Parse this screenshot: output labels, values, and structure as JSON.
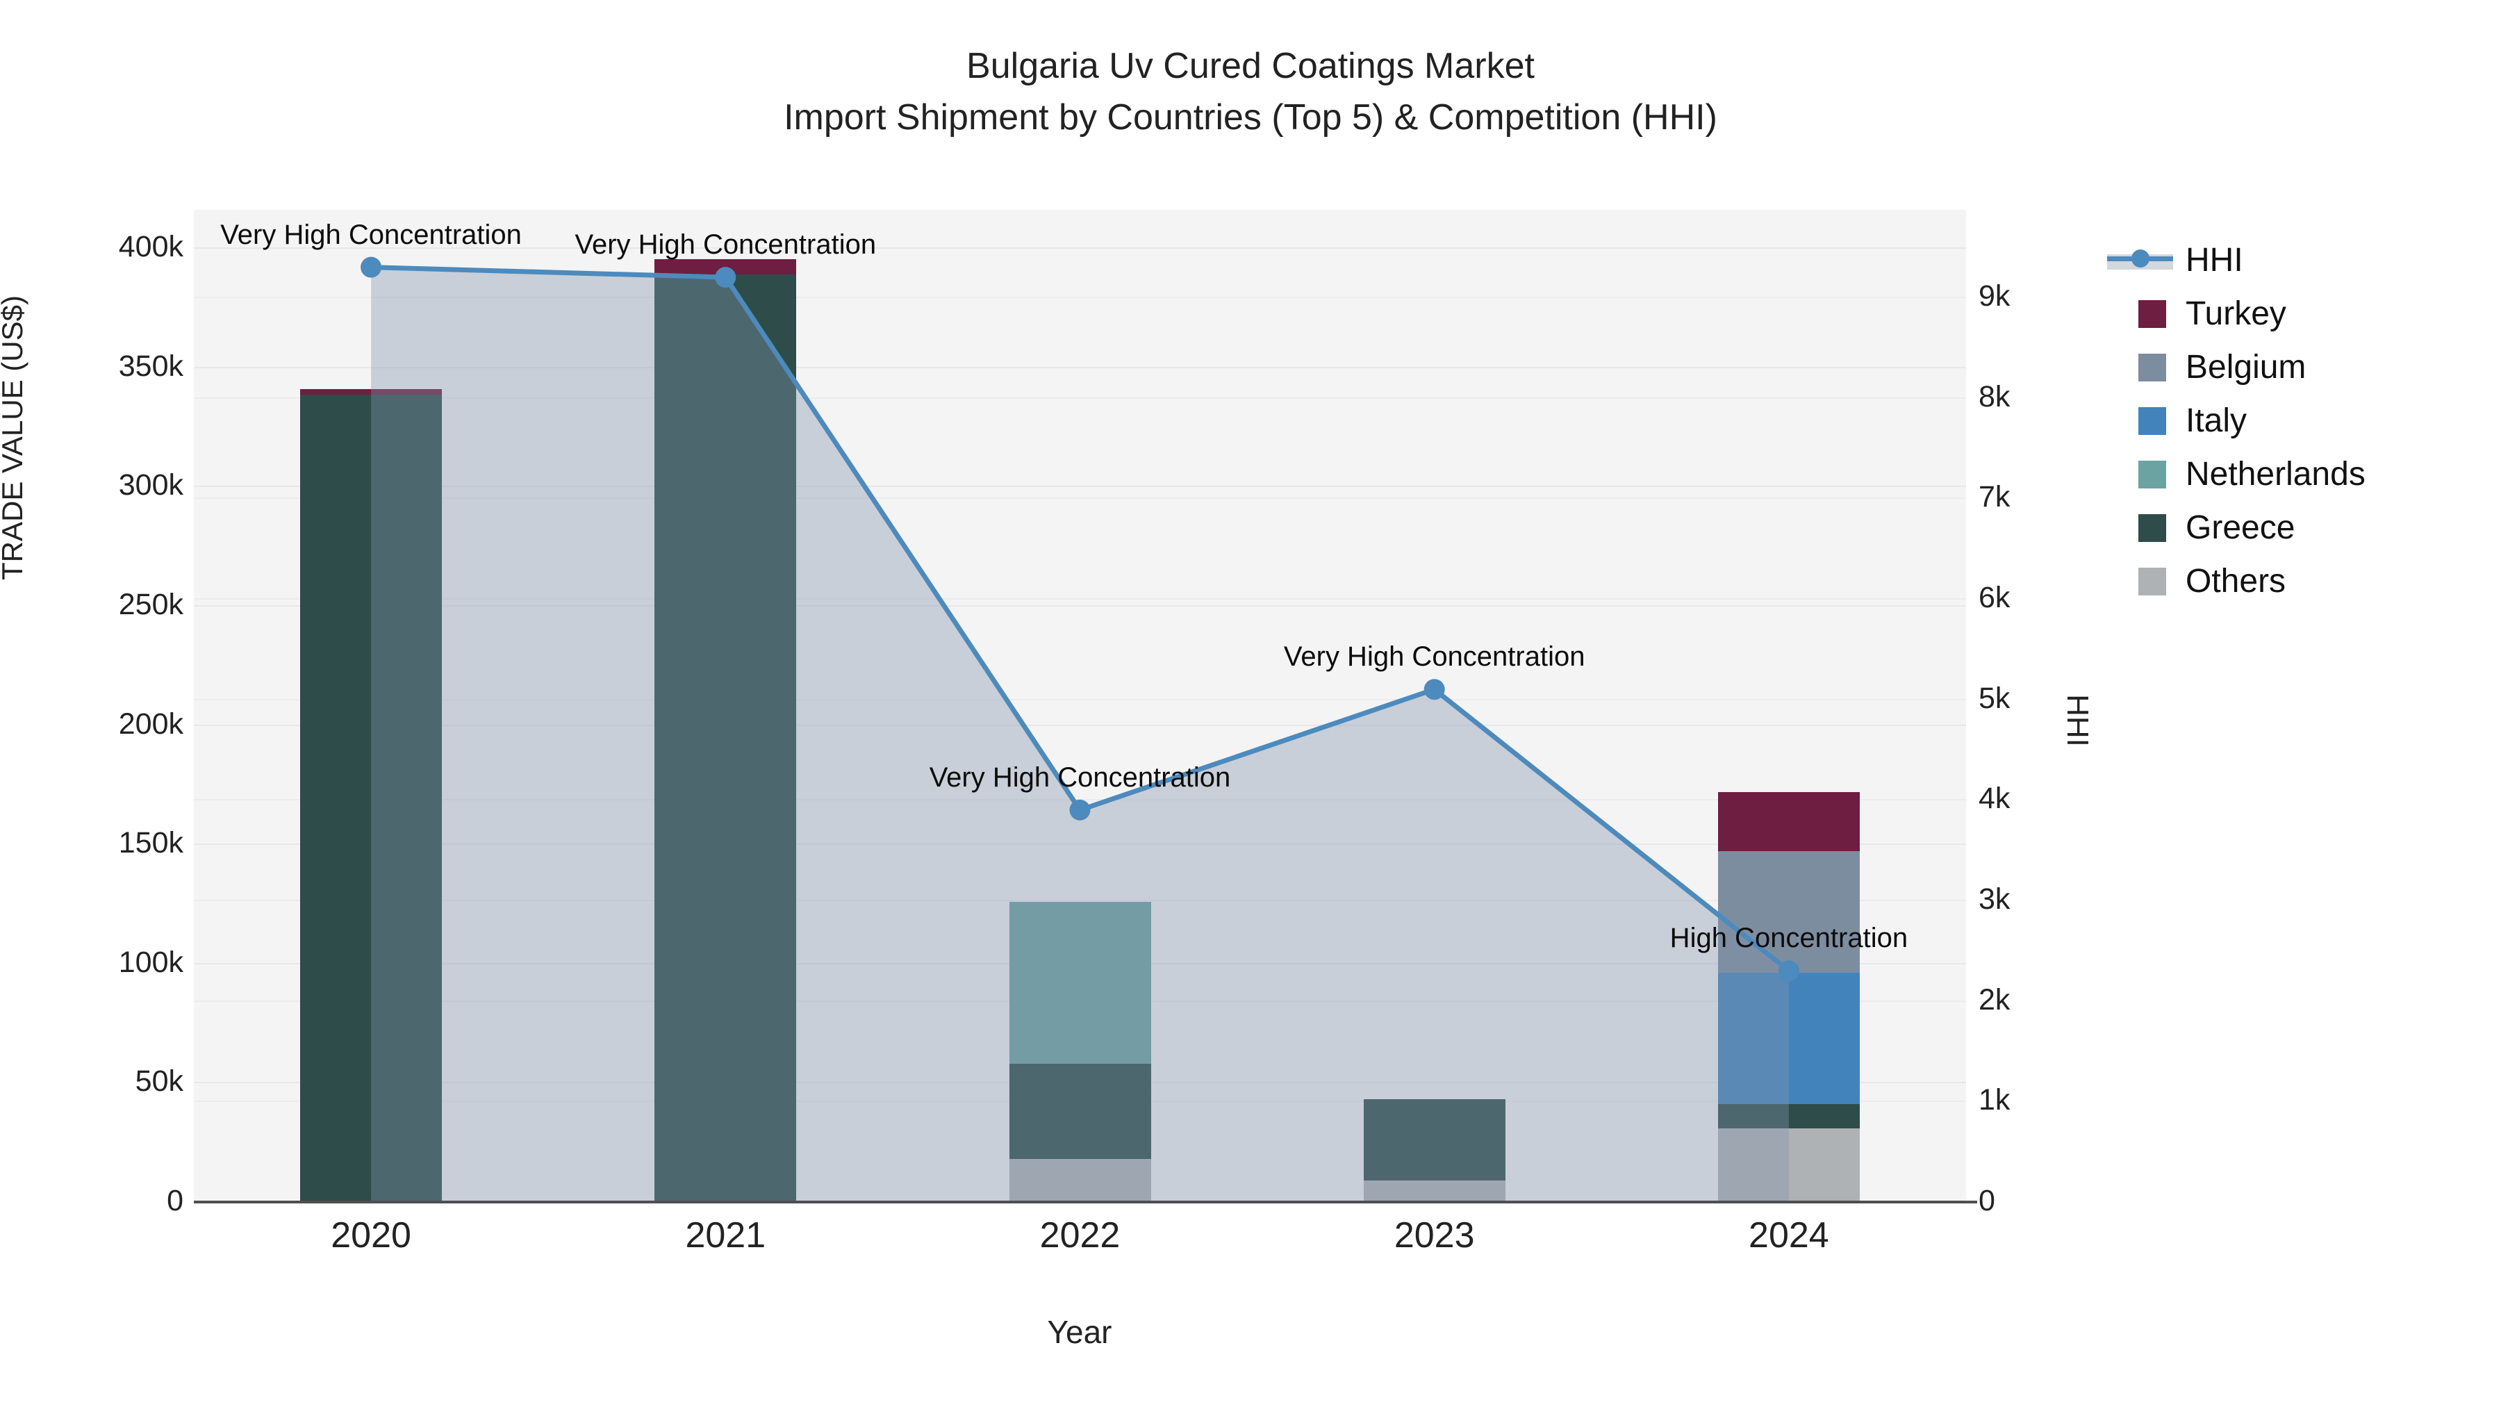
{
  "chart_data": {
    "type": "bar+line",
    "title_line1": "Bulgaria Uv Cured Coatings Market",
    "title_line2": "Import Shipment by Countries (Top 5) & Competition (HHI)",
    "categories": [
      "2020",
      "2021",
      "2022",
      "2023",
      "2024"
    ],
    "bar_series_bottom_to_top": [
      {
        "name": "Others",
        "color": "#aeb2b5",
        "values": [
          0,
          0,
          18000,
          9000,
          31000
        ]
      },
      {
        "name": "Greece",
        "color": "#2e4c49",
        "values": [
          338500,
          389000,
          40000,
          34000,
          10000
        ]
      },
      {
        "name": "Netherlands",
        "color": "#6ba2a2",
        "values": [
          0,
          0,
          68000,
          0,
          0
        ]
      },
      {
        "name": "Italy",
        "color": "#4383bc",
        "values": [
          0,
          0,
          0,
          0,
          55000
        ]
      },
      {
        "name": "Belgium",
        "color": "#7d8da0",
        "values": [
          0,
          0,
          0,
          0,
          51000
        ]
      },
      {
        "name": "Turkey",
        "color": "#6e1e40",
        "values": [
          2500,
          6400,
          0,
          0,
          25000
        ]
      }
    ],
    "line_series": {
      "name": "HHI",
      "color": "#4d8abd",
      "area_color": "rgba(130,148,170,0.38)",
      "values": [
        9300,
        9200,
        3900,
        5100,
        2300
      ]
    },
    "annotations": [
      {
        "category": "2020",
        "text": "Very High Concentration"
      },
      {
        "category": "2021",
        "text": "Very High Concentration"
      },
      {
        "category": "2022",
        "text": "Very High Concentration"
      },
      {
        "category": "2023",
        "text": "Very High Concentration"
      },
      {
        "category": "2024",
        "text": "High Concentration"
      }
    ],
    "y_left": {
      "title": "TRADE VALUE (US$)",
      "max": 400000,
      "tick_step": 50000,
      "ticks": [
        "0",
        "50k",
        "100k",
        "150k",
        "200k",
        "250k",
        "300k",
        "350k",
        "400k"
      ]
    },
    "y_right": {
      "title": "HHI",
      "max": 9000,
      "tick_step": 1000,
      "ticks": [
        "0",
        "1k",
        "2k",
        "3k",
        "4k",
        "5k",
        "6k",
        "7k",
        "8k",
        "9k"
      ]
    },
    "x_axis": {
      "title": "Year"
    },
    "legend_order": [
      "HHI",
      "Turkey",
      "Belgium",
      "Italy",
      "Netherlands",
      "Greece",
      "Others"
    ]
  }
}
